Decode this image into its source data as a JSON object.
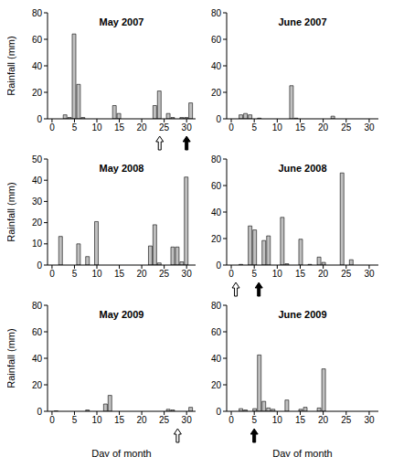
{
  "chart_data": [
    {
      "type": "bar",
      "title": "May 2007",
      "y_label": "Rainfall (mm)",
      "x": [
        3,
        4,
        5,
        6,
        7,
        14,
        15,
        23,
        24,
        26,
        27,
        29,
        30,
        31
      ],
      "values": [
        3,
        1,
        64,
        26,
        1,
        10,
        4,
        10,
        21,
        4,
        1,
        1,
        1,
        12
      ],
      "xlim": [
        -1,
        32
      ],
      "xticks": [
        0,
        5,
        10,
        15,
        20,
        25,
        30
      ],
      "ylim": [
        0,
        80
      ],
      "yticks": [
        0,
        20,
        40,
        60,
        80
      ],
      "color": "#c0c0c0",
      "arrows": [
        {
          "x": 24,
          "color": "#ffffff"
        },
        {
          "x": 30,
          "color": "#000000"
        }
      ]
    },
    {
      "type": "bar",
      "title": "June 2007",
      "x": [
        2,
        3,
        4,
        6,
        13,
        14,
        22
      ],
      "values": [
        3,
        4,
        3,
        0.5,
        25,
        0.5,
        2
      ],
      "xlim": [
        -1,
        32
      ],
      "xticks": [
        0,
        5,
        10,
        15,
        20,
        25,
        30
      ],
      "ylim": [
        0,
        80
      ],
      "yticks": [
        0,
        20,
        40,
        60,
        80
      ],
      "color": "#c0c0c0",
      "arrows": []
    },
    {
      "type": "bar",
      "title": "May 2008",
      "y_label": "Rainfall (mm)",
      "x": [
        2,
        6,
        8,
        10,
        22,
        23,
        24,
        27,
        28,
        29,
        30
      ],
      "values": [
        13.5,
        10,
        4,
        20.5,
        9,
        19,
        1,
        8.5,
        8.5,
        1.5,
        41.5
      ],
      "xlim": [
        -1,
        32
      ],
      "xticks": [
        0,
        5,
        10,
        15,
        20,
        25,
        30
      ],
      "ylim": [
        0,
        50
      ],
      "yticks": [
        0,
        10,
        20,
        30,
        40,
        50
      ],
      "color": "#c0c0c0",
      "arrows": []
    },
    {
      "type": "bar",
      "title": "June 2008",
      "x": [
        2,
        4,
        5,
        7,
        8,
        11,
        12,
        15,
        17,
        19,
        20,
        24,
        26
      ],
      "values": [
        0.5,
        29.5,
        26.5,
        18.5,
        22,
        36,
        1,
        19.5,
        0.5,
        6,
        2,
        69.5,
        4
      ],
      "xlim": [
        -1,
        32
      ],
      "xticks": [
        0,
        5,
        10,
        15,
        20,
        25,
        30
      ],
      "ylim": [
        0,
        80
      ],
      "yticks": [
        0,
        20,
        40,
        60,
        80
      ],
      "color": "#c0c0c0",
      "arrows": [
        {
          "x": 1,
          "color": "#ffffff"
        },
        {
          "x": 6,
          "color": "#000000"
        }
      ]
    },
    {
      "type": "bar",
      "title": "May 2009",
      "y_label": "Rainfall (mm)",
      "x_label": "Day of month",
      "x": [
        1,
        8,
        12,
        13,
        26,
        27,
        31
      ],
      "values": [
        0.3,
        1,
        5.5,
        12,
        1.5,
        1,
        3
      ],
      "xlim": [
        -1,
        32
      ],
      "xticks": [
        0,
        5,
        10,
        15,
        20,
        25,
        30
      ],
      "ylim": [
        0,
        80
      ],
      "yticks": [
        0,
        20,
        40,
        60,
        80
      ],
      "color": "#c0c0c0",
      "arrows": [
        {
          "x": 28,
          "color": "#ffffff"
        }
      ]
    },
    {
      "type": "bar",
      "title": "June 2009",
      "x_label": "Day of month",
      "x": [
        2,
        3,
        5,
        6,
        7,
        8,
        9,
        12,
        15,
        16,
        19,
        20
      ],
      "values": [
        2,
        1,
        2,
        42.5,
        7.5,
        2.5,
        1.5,
        8.5,
        1.5,
        3,
        2.5,
        32
      ],
      "xlim": [
        -1,
        32
      ],
      "xticks": [
        0,
        5,
        10,
        15,
        20,
        25,
        30
      ],
      "ylim": [
        0,
        80
      ],
      "yticks": [
        0,
        20,
        40,
        60,
        80
      ],
      "color": "#c0c0c0",
      "arrows": [
        {
          "x": 5,
          "color": "#000000"
        }
      ]
    }
  ]
}
